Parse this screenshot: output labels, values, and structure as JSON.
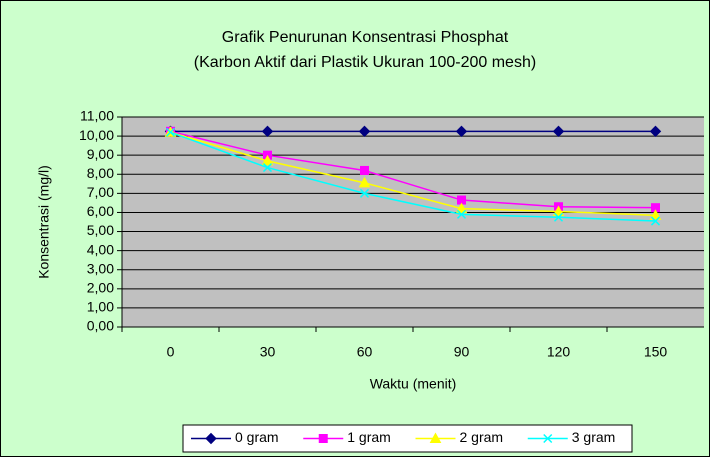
{
  "chart_data": {
    "type": "line",
    "title": "Grafik Penurunan Konsentrasi Phosphat",
    "subtitle": "(Karbon Aktif dari Plastik Ukuran 100-200 mesh)",
    "x_label": "Waktu (menit)",
    "y_label": "Konsentrasi (mg/l)",
    "categories": [
      "0",
      "30",
      "60",
      "90",
      "120",
      "150"
    ],
    "series": [
      {
        "name": "0 gram",
        "color": "#000080",
        "marker": "diamond",
        "values": [
          10.25,
          10.25,
          10.25,
          10.25,
          10.25,
          10.25
        ]
      },
      {
        "name": "1 gram",
        "color": "#FF00FF",
        "marker": "square",
        "values": [
          10.25,
          9.0,
          8.2,
          6.65,
          6.3,
          6.25
        ]
      },
      {
        "name": "2 gram",
        "color": "#FFFF00",
        "marker": "triangle",
        "values": [
          10.2,
          8.7,
          7.55,
          6.2,
          6.05,
          5.85
        ]
      },
      {
        "name": "3 gram",
        "color": "#00FFFF",
        "marker": "x",
        "values": [
          10.2,
          8.35,
          7.0,
          5.9,
          5.75,
          5.55
        ]
      }
    ],
    "ylim": [
      0,
      11
    ],
    "yticks": [
      {
        "value": 0,
        "label": "0,00"
      },
      {
        "value": 1,
        "label": "1,00"
      },
      {
        "value": 2,
        "label": "2,00"
      },
      {
        "value": 3,
        "label": "3,00"
      },
      {
        "value": 4,
        "label": "4,00"
      },
      {
        "value": 5,
        "label": "5,00"
      },
      {
        "value": 6,
        "label": "6,00"
      },
      {
        "value": 7,
        "label": "7,00"
      },
      {
        "value": 8,
        "label": "8,00"
      },
      {
        "value": 9,
        "label": "9,00"
      },
      {
        "value": 10,
        "label": "10,00"
      },
      {
        "value": 11,
        "label": "11,00"
      }
    ],
    "grid": true,
    "legend": "bottom"
  }
}
